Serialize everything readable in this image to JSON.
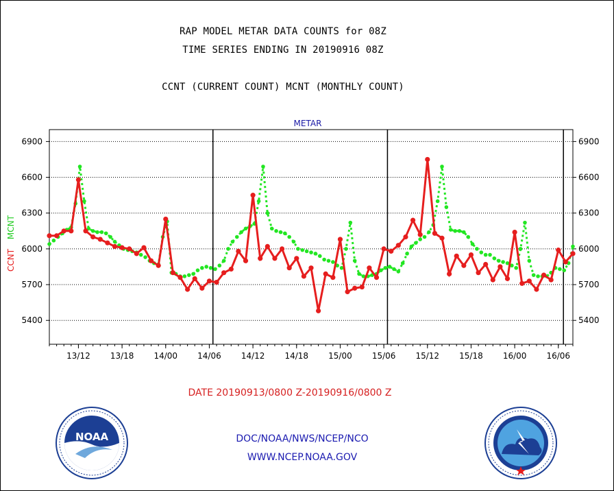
{
  "header": {
    "title_line1": "RAP MODEL METAR DATA COUNTS for 08Z",
    "title_line2": "TIME SERIES ENDING IN 20190916 08Z",
    "subtitle": "CCNT (CURRENT COUNT) MCNT (MONTHLY COUNT)"
  },
  "chart_data": {
    "type": "line",
    "title": "METAR",
    "ylabel_ccnt": "CCNT",
    "ylabel_mcnt": "MCNT",
    "ylim": [
      5200,
      7000
    ],
    "yticks": [
      5400,
      5700,
      6000,
      6300,
      6600,
      6900
    ],
    "grid": true,
    "x_tick_labels": [
      "13/12",
      "13/18",
      "14/00",
      "14/06",
      "14/12",
      "14/18",
      "15/00",
      "15/06",
      "15/12",
      "15/18",
      "16/00",
      "16/06"
    ],
    "x_tick_hours": [
      4,
      10,
      16,
      22,
      28,
      34,
      40,
      46,
      52,
      58,
      64,
      70
    ],
    "day_boundaries_hours": [
      22.5,
      46.5,
      70.7
    ],
    "x_hours_range": [
      0,
      72
    ],
    "series": [
      {
        "name": "CCNT",
        "color": "#e61e1e",
        "x": [
          0,
          1,
          2,
          3,
          4,
          5,
          6,
          7,
          8,
          9,
          10,
          11,
          12,
          13,
          14,
          15,
          16,
          17,
          18,
          19,
          20,
          21,
          22,
          23,
          24,
          25,
          26,
          27,
          28,
          29,
          30,
          31,
          32,
          33,
          34,
          35,
          36,
          37,
          38,
          39,
          40,
          41,
          42,
          43,
          44,
          45,
          46,
          47,
          48,
          49,
          50,
          51,
          52,
          53,
          54,
          55,
          56,
          57,
          58,
          59,
          60,
          61,
          62,
          63,
          64,
          65,
          66,
          67,
          68,
          69,
          70,
          71,
          72
        ],
        "values": [
          6110,
          6110,
          6150,
          6150,
          6580,
          6150,
          6100,
          6080,
          6050,
          6020,
          6010,
          6000,
          5960,
          6010,
          5900,
          5860,
          6250,
          5800,
          5760,
          5660,
          5750,
          5670,
          5730,
          5720,
          5800,
          5830,
          5980,
          5900,
          6450,
          5920,
          6020,
          5920,
          6000,
          5840,
          5920,
          5770,
          5840,
          5480,
          5790,
          5760,
          6080,
          5640,
          5670,
          5680,
          5840,
          5760,
          6000,
          5980,
          6030,
          6100,
          6240,
          6120,
          6750,
          6130,
          6090,
          5790,
          5940,
          5860,
          5950,
          5800,
          5870,
          5740,
          5850,
          5750,
          6140,
          5710,
          5730,
          5660,
          5780,
          5740,
          5990,
          5890,
          5960
        ]
      },
      {
        "name": "MCNT",
        "color": "#22e622",
        "x": [
          0,
          0.6,
          1.2,
          1.8,
          2.4,
          3,
          3.6,
          4.2,
          4.8,
          5.4,
          6,
          6.6,
          7.2,
          7.8,
          8.4,
          9,
          9.6,
          10.2,
          10.8,
          11.4,
          12,
          12.6,
          13.2,
          13.8,
          14.4,
          15,
          15.6,
          16.2,
          16.8,
          17.4,
          18,
          18.6,
          19.2,
          19.8,
          20.4,
          21,
          21.6,
          22.2,
          22.8,
          23.4,
          24,
          24.6,
          25.2,
          25.8,
          26.4,
          27,
          27.6,
          28.2,
          28.8,
          29.4,
          30,
          30.6,
          31.2,
          31.8,
          32.4,
          33,
          33.6,
          34.2,
          34.8,
          35.4,
          36,
          36.6,
          37.2,
          37.8,
          38.4,
          39,
          39.6,
          40.2,
          40.8,
          41.4,
          42,
          42.6,
          43.2,
          43.8,
          44.4,
          45,
          45.6,
          46.2,
          46.8,
          47.4,
          48,
          48.6,
          49.2,
          49.8,
          50.4,
          51,
          51.6,
          52.2,
          52.8,
          53.4,
          54,
          54.6,
          55.2,
          55.8,
          56.4,
          57,
          57.6,
          58.2,
          58.8,
          59.4,
          60,
          60.6,
          61.2,
          61.8,
          62.4,
          63,
          63.6,
          64.2,
          64.8,
          65.4,
          66,
          66.6,
          67.2,
          67.8,
          68.4,
          69,
          69.6,
          70.2,
          70.8,
          71.4,
          72
        ],
        "values": [
          6040,
          6070,
          6100,
          6130,
          6160,
          6180,
          6380,
          6690,
          6400,
          6170,
          6150,
          6140,
          6140,
          6130,
          6100,
          6060,
          6030,
          6000,
          5990,
          5980,
          5970,
          5950,
          5930,
          5900,
          5880,
          5870,
          6100,
          6230,
          5800,
          5790,
          5770,
          5770,
          5780,
          5790,
          5820,
          5840,
          5850,
          5840,
          5830,
          5860,
          5900,
          6000,
          6060,
          6100,
          6140,
          6170,
          6190,
          6210,
          6400,
          6690,
          6300,
          6170,
          6150,
          6140,
          6130,
          6100,
          6060,
          6000,
          5990,
          5980,
          5970,
          5960,
          5940,
          5910,
          5900,
          5890,
          5860,
          5840,
          6000,
          6220,
          5900,
          5790,
          5770,
          5770,
          5780,
          5790,
          5820,
          5840,
          5850,
          5830,
          5810,
          5880,
          5960,
          6020,
          6050,
          6080,
          6100,
          6140,
          6200,
          6400,
          6690,
          6350,
          6160,
          6150,
          6150,
          6140,
          6100,
          6040,
          6000,
          5970,
          5950,
          5950,
          5920,
          5900,
          5890,
          5880,
          5860,
          5840,
          6000,
          6220,
          5900,
          5780,
          5770,
          5770,
          5770,
          5800,
          5840,
          5830,
          5820,
          5880,
          6020
        ]
      }
    ]
  },
  "footer": {
    "date_range": "DATE 20190913/0800 Z-20190916/0800 Z",
    "org_path": "DOC/NOAA/NWS/NCEP/NCO",
    "website": "WWW.NCEP.NOAA.GOV"
  },
  "logos": {
    "noaa_icon": "noaa-logo-icon",
    "noaa_text": "NOAA",
    "nws_icon": "nws-logo-icon"
  }
}
